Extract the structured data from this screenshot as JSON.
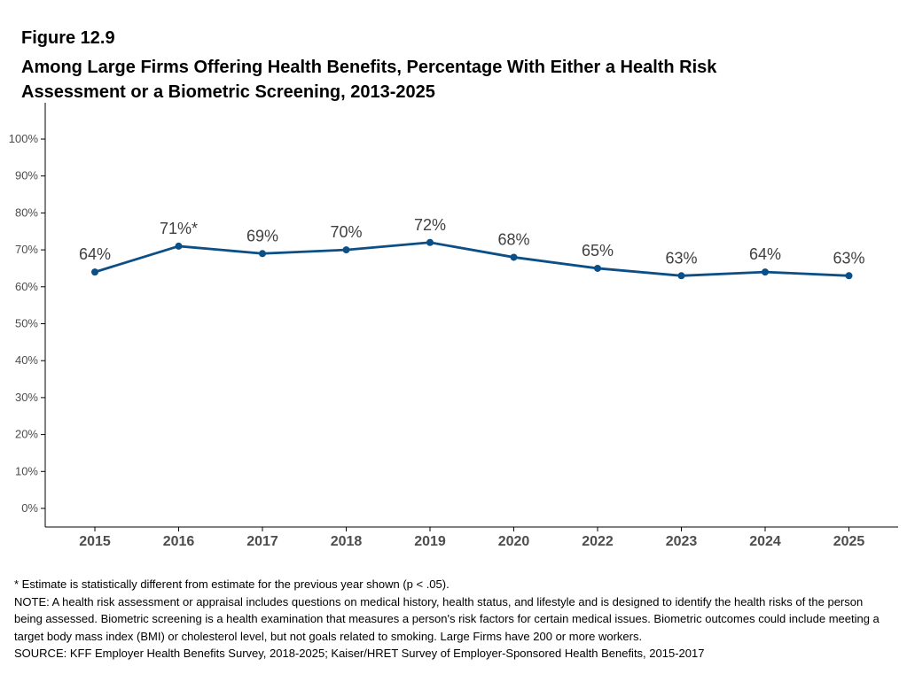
{
  "figure": {
    "label": "Figure 12.9",
    "title": "Among Large Firms Offering Health Benefits, Percentage With Either a Health Risk Assessment or a Biometric Screening, 2013-2025"
  },
  "chart_data": {
    "type": "line",
    "title": "Among Large Firms Offering Health Benefits, Percentage With Either a Health Risk Assessment or a Biometric Screening, 2013-2025",
    "xlabel": "",
    "ylabel": "",
    "categories": [
      "2015",
      "2016",
      "2017",
      "2018",
      "2019",
      "2020",
      "2022",
      "2023",
      "2024",
      "2025"
    ],
    "series": [
      {
        "values": [
          64,
          71,
          69,
          70,
          72,
          68,
          65,
          63,
          64,
          63
        ],
        "labels": [
          "64%",
          "71%*",
          "69%",
          "70%",
          "72%",
          "68%",
          "65%",
          "63%",
          "64%",
          "63%"
        ]
      }
    ],
    "ylim": [
      0,
      100
    ],
    "yticks": [
      0,
      10,
      20,
      30,
      40,
      50,
      60,
      70,
      80,
      90,
      100
    ],
    "ytick_labels": [
      "0%",
      "10%",
      "20%",
      "30%",
      "40%",
      "50%",
      "60%",
      "70%",
      "80%",
      "90%",
      "100%"
    ],
    "grid": false,
    "line_color": "#0B4F86",
    "axis_color": "#000000"
  },
  "notes": {
    "significance": "* Estimate is statistically different from estimate for the previous year shown (p < .05).",
    "note": "NOTE: A health risk assessment or appraisal includes questions on medical history, health status, and lifestyle and is designed to identify the health risks of the person being assessed.  Biometric screening is a health examination that measures a person's risk factors for certain medical issues. Biometric outcomes could include meeting a target body mass index (BMI) or cholesterol level, but not goals related to smoking.  Large Firms have 200 or more workers.",
    "source": "SOURCE: KFF Employer Health Benefits Survey, 2018-2025; Kaiser/HRET Survey of Employer-Sponsored Health Benefits, 2015-2017"
  }
}
